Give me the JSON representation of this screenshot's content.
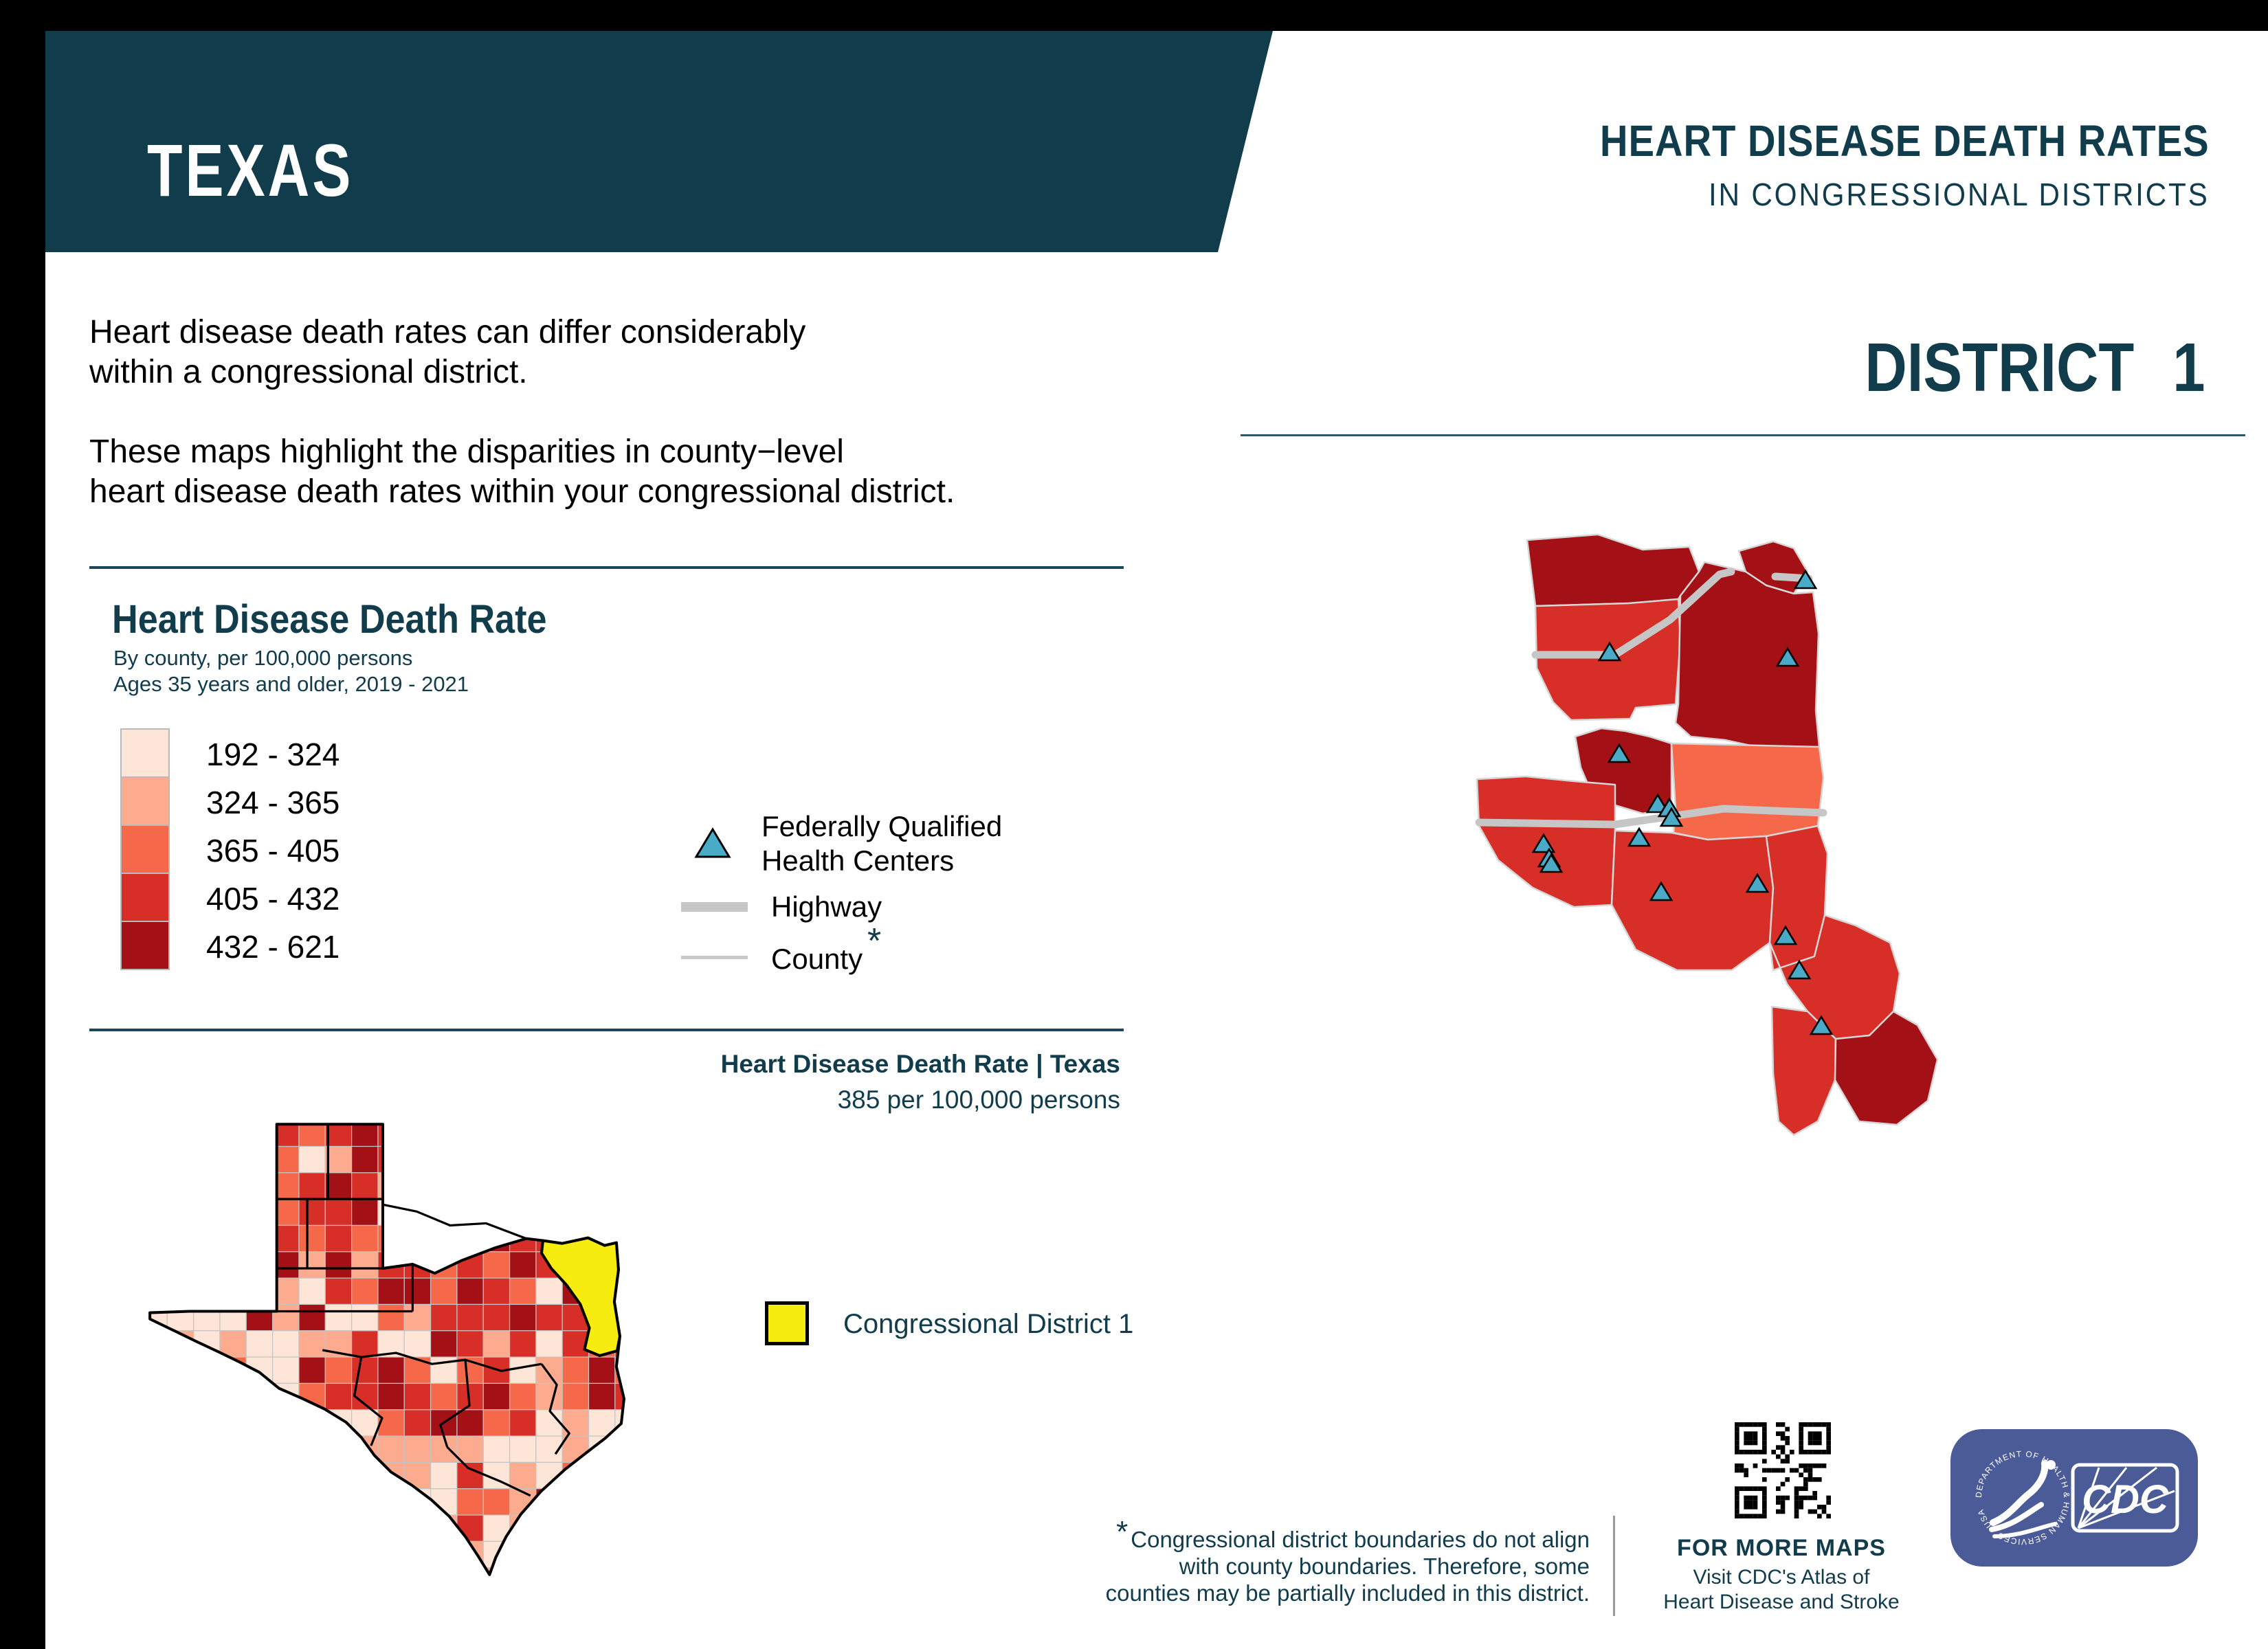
{
  "header": {
    "state": "TEXAS",
    "title": "HEART DISEASE DEATH RATES",
    "subtitle": "IN CONGRESSIONAL DISTRICTS"
  },
  "intro": {
    "p1_line1": "Heart disease death rates can differ considerably",
    "p1_line2": "within a congressional district.",
    "p2_line1": "These maps highlight the disparities in county−level",
    "p2_line2": "heart disease death rates within your congressional district."
  },
  "legend": {
    "title": "Heart Disease Death Rate",
    "subtitle1": "By county, per 100,000 persons",
    "subtitle2": "Ages 35 years and older, 2019 - 2021",
    "classes": [
      {
        "range": "192 - 324",
        "color": "#fde5d8"
      },
      {
        "range": "324 - 365",
        "color": "#fcab8e"
      },
      {
        "range": "365 - 405",
        "color": "#f5694a"
      },
      {
        "range": "405 - 432",
        "color": "#d72e27"
      },
      {
        "range": "432 - 621",
        "color": "#a31015"
      }
    ],
    "fqhc_line1": "Federally Qualified",
    "fqhc_line2": "Health Centers",
    "highway_label": "Highway",
    "county_label": "County",
    "county_marker": "*"
  },
  "state_summary": {
    "title": "Heart Disease Death Rate | Texas",
    "value": "385 per 100,000 persons"
  },
  "district_panel": {
    "title": "DISTRICT  1"
  },
  "cd_legend": {
    "label": "Congressional District 1",
    "color": "#f7ec0f"
  },
  "footnote": {
    "marker": "*",
    "line1": "Congressional district boundaries do not align",
    "line2": "with county boundaries. Therefore, some",
    "line3": "counties may be partially included in this district."
  },
  "more_maps": {
    "line1": "FOR MORE MAPS",
    "line2": "Visit CDC's Atlas of",
    "line3": "Heart Disease and Stroke"
  },
  "logo": {
    "cdc_text": "CDC",
    "hhs_seal_text": "DEPARTMENT OF HEALTH & HUMAN SERVICES · USA"
  },
  "colors": {
    "accent": "#113c4c",
    "class1": "#fde5d8",
    "class2": "#fcab8e",
    "class3": "#f5694a",
    "class4": "#d72e27",
    "class5": "#a31015",
    "district_yellow": "#f7ec0f",
    "fqhc_blue": "#4aabc8",
    "highway_gray": "#c6c6c6",
    "county_line_gray": "#c9c9c9",
    "hhs_blue": "#4b5b97"
  }
}
